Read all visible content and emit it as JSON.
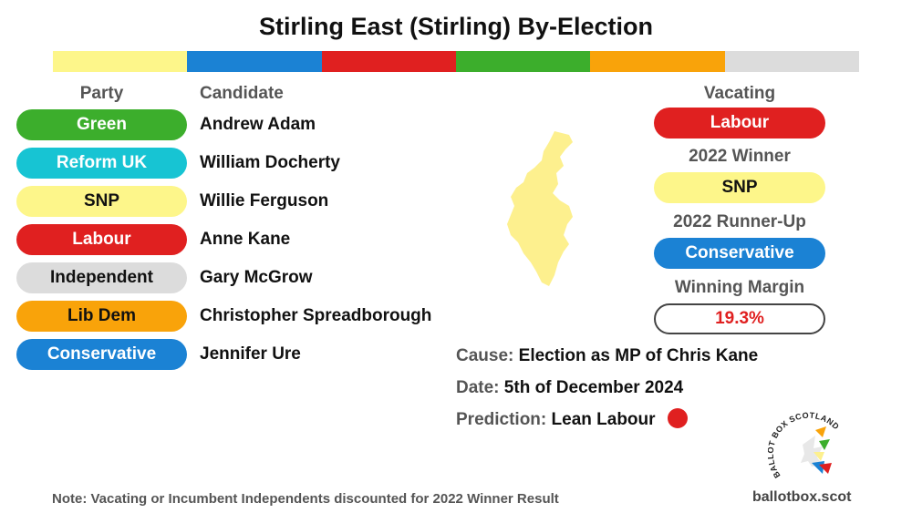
{
  "title": "Stirling East (Stirling) By-Election",
  "stripe_colors": [
    "#fdf68a",
    "#1b82d4",
    "#e02020",
    "#3cae2c",
    "#f9a30a",
    "#dcdcdc"
  ],
  "headers": {
    "party": "Party",
    "candidate": "Candidate"
  },
  "candidates": [
    {
      "party": "Green",
      "name": "Andrew Adam",
      "color": "#3cae2c"
    },
    {
      "party": "Reform UK",
      "name": "William Docherty",
      "color": "#17c4d3"
    },
    {
      "party": "SNP",
      "name": "Willie Ferguson",
      "color": "#fdf68a"
    },
    {
      "party": "Labour",
      "name": "Anne Kane",
      "color": "#e02020"
    },
    {
      "party": "Independent",
      "name": "Gary McGrow",
      "color": "#dcdcdc"
    },
    {
      "party": "Lib Dem",
      "name": "Christopher Spreadborough",
      "color": "#f9a30a"
    },
    {
      "party": "Conservative",
      "name": "Jennifer Ure",
      "color": "#1b82d4"
    }
  ],
  "right_panel": {
    "vacating_label": "Vacating",
    "vacating_party": "Labour",
    "winner_label": "2022 Winner",
    "winner_party": "SNP",
    "runner_up_label": "2022 Runner-Up",
    "runner_up_party": "Conservative",
    "margin_label": "Winning Margin",
    "margin_value": "19.3%"
  },
  "info": {
    "cause_label": "Cause:",
    "cause_value": "Election as MP of Chris Kane",
    "date_label": "Date:",
    "date_value": "5th of December 2024",
    "prediction_label": "Prediction:",
    "prediction_value": "Lean Labour",
    "prediction_color": "#e02020"
  },
  "note": "Note: Vacating  or Incumbent Independents discounted for 2022 Winner Result",
  "site": "ballotbox.scot",
  "logo_text": "BALLOT BOX SCOTLAND"
}
